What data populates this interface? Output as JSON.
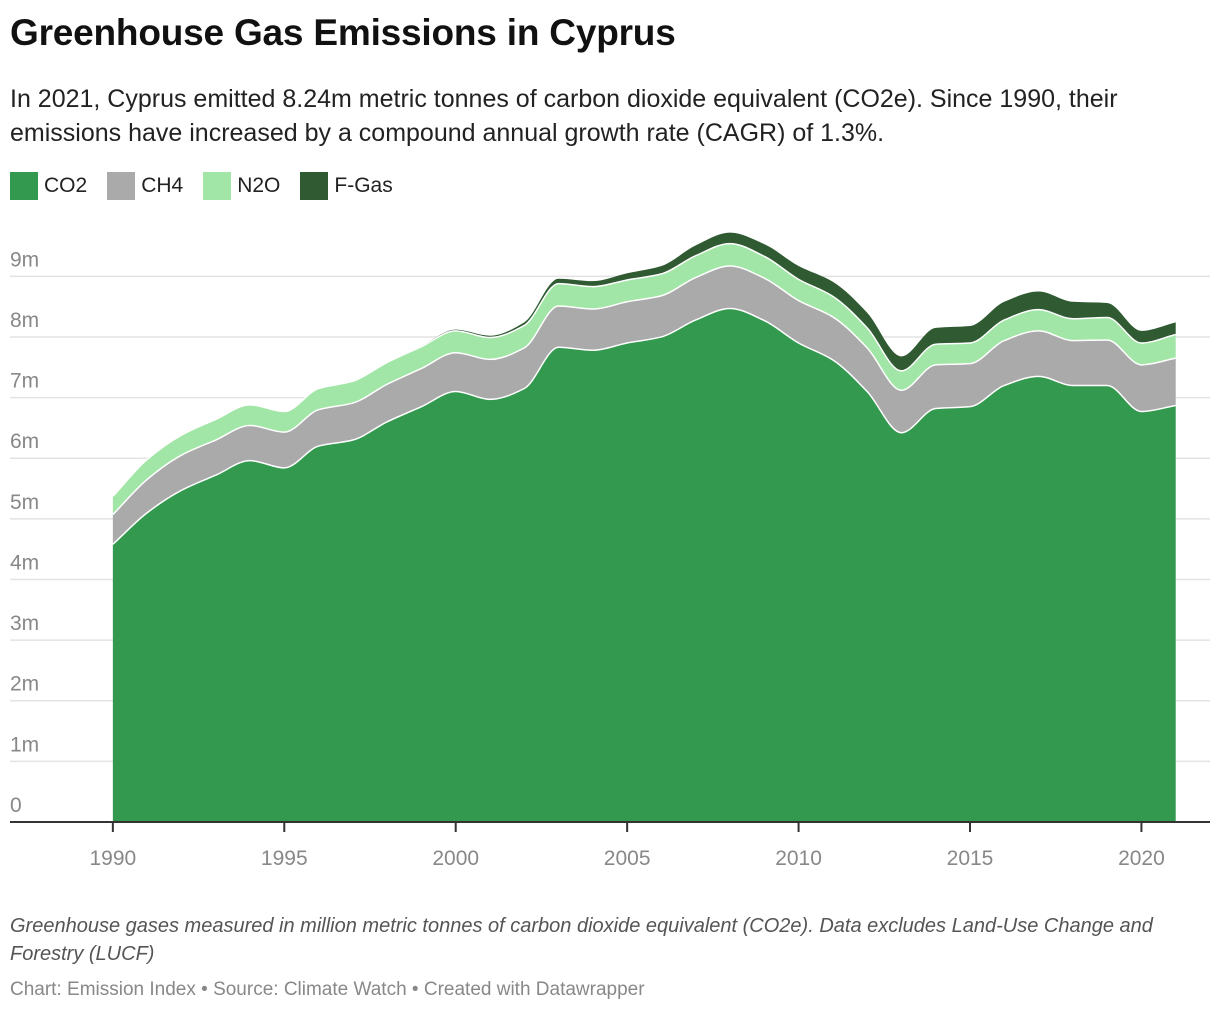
{
  "title": "Greenhouse Gas Emissions in Cyprus",
  "subtitle": "In 2021, Cyprus emitted 8.24m metric tonnes of carbon dioxide equivalent (CO2e). Since 1990, their emissions have increased by a compound annual growth rate (CAGR) of 1.3%.",
  "note": "Greenhouse gases measured in million metric tonnes of carbon dioxide equivalent (CO2e). Data excludes Land-Use Change and Forestry (LUCF)",
  "credit": "Chart: Emission Index • Source: Climate Watch • Created with Datawrapper",
  "chart_data": {
    "type": "area",
    "stacked": true,
    "x": [
      1990,
      1991,
      1992,
      1993,
      1994,
      1995,
      1996,
      1997,
      1998,
      1999,
      2000,
      2001,
      2002,
      2003,
      2004,
      2005,
      2006,
      2007,
      2008,
      2009,
      2010,
      2011,
      2012,
      2013,
      2014,
      2015,
      2016,
      2017,
      2018,
      2019,
      2020,
      2021
    ],
    "series": [
      {
        "name": "CO2",
        "color": "#33994f",
        "values": [
          4.58,
          5.1,
          5.47,
          5.72,
          5.96,
          5.84,
          6.2,
          6.3,
          6.6,
          6.85,
          7.1,
          6.97,
          7.15,
          7.83,
          7.78,
          7.9,
          8.0,
          8.28,
          8.47,
          8.27,
          7.9,
          7.62,
          7.1,
          6.42,
          6.82,
          6.85,
          7.2,
          7.35,
          7.2,
          7.2,
          6.77,
          6.87
        ]
      },
      {
        "name": "CH4",
        "color": "#aaaaaa",
        "values": [
          0.49,
          0.55,
          0.58,
          0.58,
          0.58,
          0.59,
          0.6,
          0.61,
          0.62,
          0.63,
          0.64,
          0.66,
          0.67,
          0.68,
          0.68,
          0.68,
          0.68,
          0.7,
          0.7,
          0.7,
          0.7,
          0.71,
          0.72,
          0.7,
          0.72,
          0.71,
          0.74,
          0.75,
          0.74,
          0.75,
          0.77,
          0.78
        ]
      },
      {
        "name": "N2O",
        "color": "#a1e6a6",
        "values": [
          0.3,
          0.33,
          0.33,
          0.34,
          0.34,
          0.34,
          0.35,
          0.36,
          0.36,
          0.36,
          0.36,
          0.36,
          0.37,
          0.37,
          0.37,
          0.36,
          0.36,
          0.36,
          0.37,
          0.36,
          0.35,
          0.34,
          0.33,
          0.32,
          0.34,
          0.34,
          0.34,
          0.35,
          0.36,
          0.37,
          0.36,
          0.39
        ]
      },
      {
        "name": "F-Gas",
        "color": "#2f5a32",
        "values": [
          0,
          0,
          0,
          0,
          0,
          0,
          0,
          0,
          0,
          0.01,
          0.02,
          0.03,
          0.05,
          0.08,
          0.09,
          0.11,
          0.13,
          0.17,
          0.18,
          0.2,
          0.22,
          0.24,
          0.25,
          0.24,
          0.27,
          0.28,
          0.3,
          0.3,
          0.28,
          0.24,
          0.2,
          0.2
        ]
      }
    ],
    "ylim": [
      0,
      9.5
    ],
    "y_ticks": [
      0,
      1,
      2,
      3,
      4,
      5,
      6,
      7,
      8,
      9
    ],
    "y_tick_labels": [
      "0",
      "1m",
      "2m",
      "3m",
      "4m",
      "5m",
      "6m",
      "7m",
      "8m",
      "9m"
    ],
    "x_ticks": [
      1990,
      1995,
      2000,
      2005,
      2010,
      2015,
      2020
    ],
    "x_tick_labels": [
      "1990",
      "1995",
      "2000",
      "2005",
      "2010",
      "2015",
      "2020"
    ],
    "xlim": [
      1987,
      2022
    ],
    "grid": true,
    "legend_position": "top-left"
  }
}
